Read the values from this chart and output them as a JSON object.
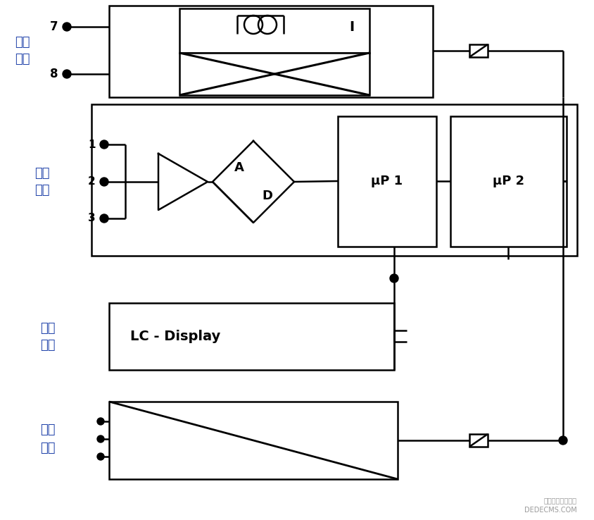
{
  "bg_color": "#ffffff",
  "line_color": "#000000",
  "label_color": "#2244aa",
  "fig_width": 8.44,
  "fig_height": 7.38,
  "dpi": 100,
  "labels": {
    "xianquan": "线圈\n供电",
    "xinhao": "信号\n放大",
    "jiudi": "就地\n显示",
    "dianliu": "电流\n输出"
  },
  "watermark1": "织梦内容管理系统",
  "watermark2": "DEDECMS.COM"
}
